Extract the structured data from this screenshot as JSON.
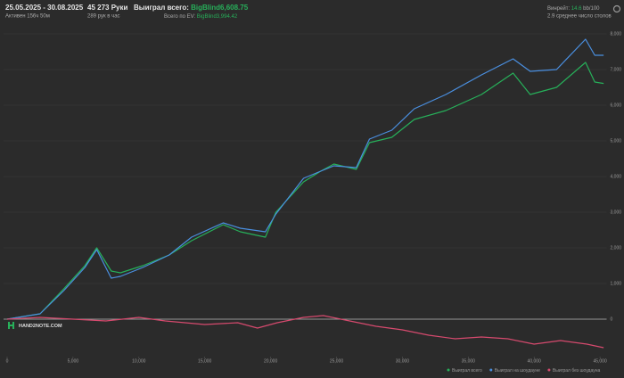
{
  "header": {
    "period": "25.05.2025 - 30.08.2025",
    "active": "Активен 156ч 50м",
    "hands": "45 273 Руки",
    "rate": "289 рук в час",
    "won_label": "Выиграл всего:",
    "won_value": "BigBlind6,608.75",
    "ev_label": "Всего по EV:",
    "ev_value": "BigBlind3,994.42",
    "winrate_label": "Винрейт:",
    "winrate_value": "14.6",
    "winrate_unit": "bb/100",
    "tables": "2.9 среднее число столов"
  },
  "logo": "HAND2NOTE.COM",
  "chart_data": {
    "type": "line",
    "xlim": [
      0,
      45500
    ],
    "ylim": [
      -1050,
      8050
    ],
    "xticks": [
      0,
      {
        "value": 5000,
        "label": "5,000"
      },
      {
        "value": 10000,
        "label": "10,000"
      },
      {
        "value": 15000,
        "label": "15,000"
      },
      {
        "value": 20000,
        "label": "20,000"
      },
      {
        "value": 25000,
        "label": "25,000"
      },
      {
        "value": 30000,
        "label": "30,000"
      },
      {
        "value": 35000,
        "label": "35,000"
      },
      {
        "value": 40000,
        "label": "40,000"
      },
      {
        "value": 45000,
        "label": "45,000"
      }
    ],
    "yticks": [
      0,
      {
        "value": 1000,
        "label": "1,000"
      },
      {
        "value": 2000,
        "label": "2,000"
      },
      {
        "value": 3000,
        "label": "3,000"
      },
      {
        "value": 4000,
        "label": "4,000"
      },
      {
        "value": 5000,
        "label": "5,000"
      },
      {
        "value": 6000,
        "label": "6,000"
      },
      {
        "value": 7000,
        "label": "7,000"
      },
      {
        "value": 8000,
        "label": "8,000"
      }
    ],
    "grid": true,
    "series": [
      {
        "name": "Выиграл всего",
        "color": "#27b05a",
        "x": [
          0,
          2500,
          4300,
          5900,
          6800,
          7900,
          8600,
          10300,
          12300,
          14000,
          16400,
          17700,
          19600,
          20400,
          22500,
          23800,
          24800,
          26500,
          27500,
          29200,
          30900,
          33300,
          36000,
          38400,
          39700,
          41700,
          43900,
          44600,
          45273
        ],
        "values": [
          0,
          150,
          850,
          1500,
          2000,
          1350,
          1300,
          1500,
          1800,
          2200,
          2650,
          2450,
          2300,
          3000,
          3850,
          4150,
          4350,
          4200,
          4950,
          5100,
          5600,
          5850,
          6300,
          6900,
          6300,
          6500,
          7200,
          6650,
          6608.75
        ]
      },
      {
        "name": "Выиграл на шоудауне",
        "color": "#4a8fe0",
        "x": [
          0,
          2500,
          4300,
          5900,
          6800,
          7900,
          8600,
          10300,
          12300,
          14000,
          16400,
          17700,
          19600,
          20400,
          22500,
          23800,
          24800,
          26500,
          27500,
          29200,
          30900,
          33300,
          36000,
          38400,
          39700,
          41700,
          43900,
          44600,
          45273
        ],
        "values": [
          0,
          150,
          800,
          1450,
          1950,
          1150,
          1200,
          1450,
          1800,
          2300,
          2700,
          2550,
          2450,
          2950,
          3950,
          4150,
          4300,
          4250,
          5050,
          5300,
          5900,
          6300,
          6850,
          7300,
          6950,
          7000,
          7850,
          7400,
          7400
        ]
      },
      {
        "name": "Выиграл без шоудауна",
        "color": "#d64a6e",
        "x": [
          0,
          2500,
          5000,
          7500,
          10000,
          12000,
          15000,
          17500,
          19000,
          20500,
          22500,
          24000,
          26000,
          28000,
          30000,
          32000,
          34000,
          36000,
          38000,
          40000,
          42000,
          44000,
          45273
        ],
        "values": [
          0,
          50,
          0,
          -50,
          50,
          -50,
          -150,
          -100,
          -250,
          -100,
          50,
          100,
          -50,
          -200,
          -300,
          -450,
          -550,
          -500,
          -550,
          -700,
          -600,
          -700,
          -800
        ]
      }
    ]
  }
}
